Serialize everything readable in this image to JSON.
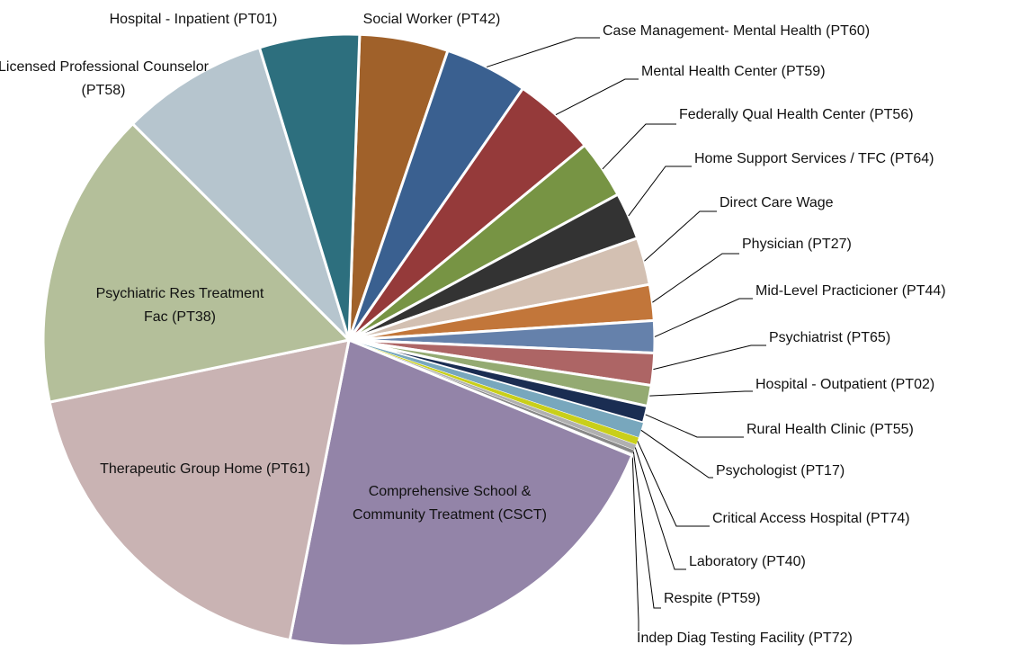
{
  "chart_data": {
    "type": "pie",
    "categories": [
      "Social Worker (PT42)",
      "Case Management- Mental Health (PT60)",
      "Mental Health Center (PT59)",
      "Federally Qual Health Center (PT56)",
      "Home Support Services / TFC (PT64)",
      "Direct Care Wage",
      "Physician (PT27)",
      "Mid-Level Practicioner (PT44)",
      "Psychiatrist (PT65)",
      "Hospital - Outpatient (PT02)",
      "Rural Health Clinic (PT55)",
      "Psychologist (PT17)",
      "Critical Access Hospital (PT74)",
      "Laboratory (PT40)",
      "Respite (PT59)",
      "Indep Diag Testing Facility (PT72)",
      "Comprehensive School & Community Treatment (CSCT)",
      "Therapeutic Group Home (PT61)",
      "Psychiatric Res Treatment Fac (PT38)",
      "Licensed Professional Counselor (PT58)",
      "Hospital - Inpatient (PT01)"
    ],
    "values": [
      4.7,
      4.4,
      4.4,
      3.1,
      2.5,
      2.5,
      1.9,
      1.7,
      1.7,
      1.1,
      0.9,
      0.8,
      0.4,
      0.3,
      0.2,
      0.1,
      22,
      18.7,
      15.8,
      7.8,
      5.3
    ],
    "colors": [
      "#a0612a",
      "#3a6090",
      "#953a3a",
      "#779444",
      "#333333",
      "#d3c0b2",
      "#c2763a",
      "#6581ab",
      "#ad6565",
      "#94aa72",
      "#1a2d52",
      "#78a7bd",
      "#c9cf1a",
      "#b0b0b0",
      "#888888",
      "#dddddd",
      "#9384a8",
      "#c9b3b3",
      "#b4bf9a",
      "#b6c5ce",
      "#2d6f7e"
    ]
  }
}
